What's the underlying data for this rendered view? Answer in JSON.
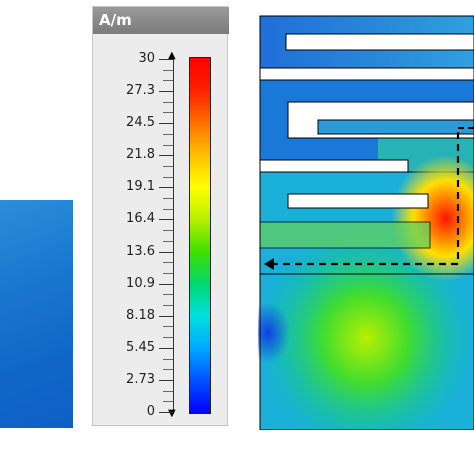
{
  "legend": {
    "unit": "A/m",
    "ticks": [
      "30",
      "27.3",
      "24.5",
      "21.8",
      "19.1",
      "16.4",
      "13.6",
      "10.9",
      "8.18",
      "5.45",
      "2.73",
      "0"
    ],
    "min": 0,
    "max": 30
  },
  "colors": {
    "colormap": [
      "#0000ff",
      "#0050ff",
      "#00a8ff",
      "#00e0e0",
      "#00d870",
      "#40e000",
      "#b8f000",
      "#ffff00",
      "#ffc000",
      "#ff7000",
      "#ff2000",
      "#ff0000"
    ]
  },
  "icons": {
    "arrow_up": "up-arrow-icon",
    "arrow_down": "down-arrow-icon"
  }
}
